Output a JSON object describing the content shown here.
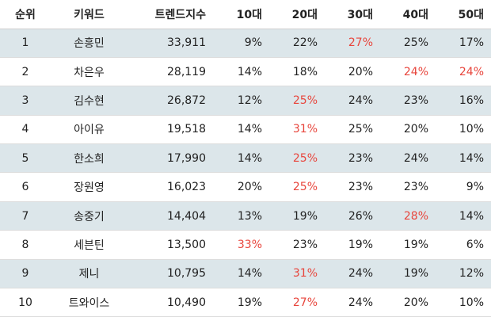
{
  "colors": {
    "row_shade": "#dce6ea",
    "highlight": "#e8453c"
  },
  "headers": [
    "순위",
    "키워드",
    "트렌드지수",
    "10대",
    "20대",
    "30대",
    "40대",
    "50대"
  ],
  "rows": [
    {
      "rank": "1",
      "keyword": "손흥민",
      "index": "33,911",
      "ages": [
        "9%",
        "22%",
        "27%",
        "25%",
        "17%"
      ],
      "hot": [
        2
      ]
    },
    {
      "rank": "2",
      "keyword": "차은우",
      "index": "28,119",
      "ages": [
        "14%",
        "18%",
        "20%",
        "24%",
        "24%"
      ],
      "hot": [
        3,
        4
      ]
    },
    {
      "rank": "3",
      "keyword": "김수현",
      "index": "26,872",
      "ages": [
        "12%",
        "25%",
        "24%",
        "23%",
        "16%"
      ],
      "hot": [
        1
      ]
    },
    {
      "rank": "4",
      "keyword": "아이유",
      "index": "19,518",
      "ages": [
        "14%",
        "31%",
        "25%",
        "20%",
        "10%"
      ],
      "hot": [
        1
      ]
    },
    {
      "rank": "5",
      "keyword": "한소희",
      "index": "17,990",
      "ages": [
        "14%",
        "25%",
        "23%",
        "24%",
        "14%"
      ],
      "hot": [
        1
      ]
    },
    {
      "rank": "6",
      "keyword": "장원영",
      "index": "16,023",
      "ages": [
        "20%",
        "25%",
        "23%",
        "23%",
        "9%"
      ],
      "hot": [
        1
      ]
    },
    {
      "rank": "7",
      "keyword": "송중기",
      "index": "14,404",
      "ages": [
        "13%",
        "19%",
        "26%",
        "28%",
        "14%"
      ],
      "hot": [
        3
      ]
    },
    {
      "rank": "8",
      "keyword": "세븐틴",
      "index": "13,500",
      "ages": [
        "33%",
        "23%",
        "19%",
        "19%",
        "6%"
      ],
      "hot": [
        0
      ]
    },
    {
      "rank": "9",
      "keyword": "제니",
      "index": "10,795",
      "ages": [
        "14%",
        "31%",
        "24%",
        "19%",
        "12%"
      ],
      "hot": [
        1
      ]
    },
    {
      "rank": "10",
      "keyword": "트와이스",
      "index": "10,490",
      "ages": [
        "19%",
        "27%",
        "24%",
        "20%",
        "10%"
      ],
      "hot": [
        1
      ]
    }
  ]
}
